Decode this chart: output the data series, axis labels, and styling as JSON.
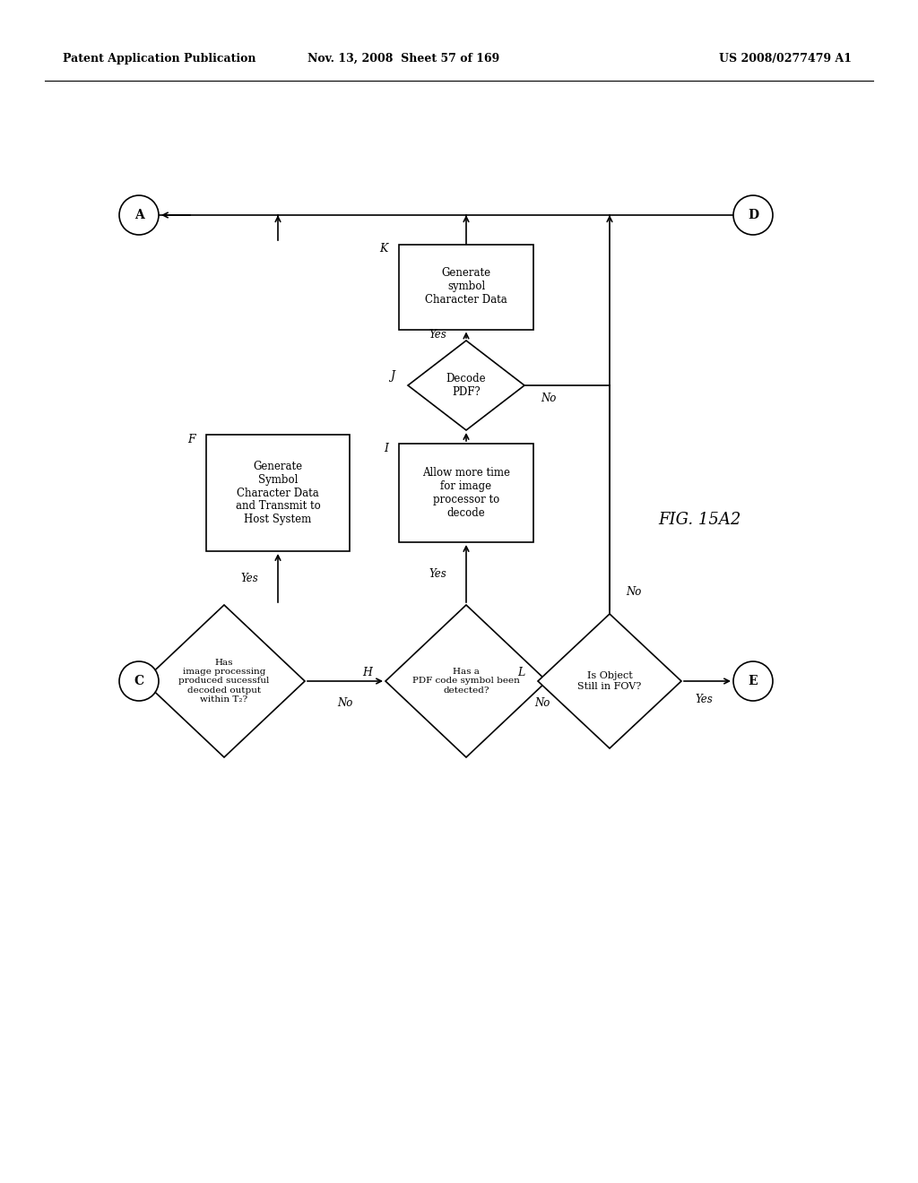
{
  "bg_color": "#ffffff",
  "header_left": "Patent Application Publication",
  "header_mid": "Nov. 13, 2008  Sheet 57 of 169",
  "header_right": "US 2008/0277479 A1",
  "fig_label": "FIG. 15A2"
}
